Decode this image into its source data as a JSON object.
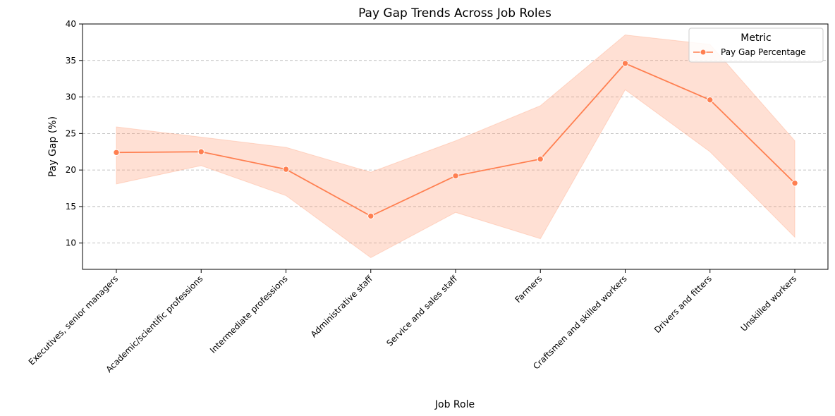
{
  "chart_data": {
    "type": "line",
    "title": "Pay Gap Trends Across Job Roles",
    "xlabel": "Job Role",
    "ylabel": "Pay Gap (%)",
    "ylim": [
      6.4,
      40
    ],
    "yticks": [
      10,
      15,
      20,
      25,
      30,
      35,
      40
    ],
    "grid": "horizontal dashed",
    "categories": [
      "Executives, senior managers",
      "Academic/scientific professions",
      "Intermediate professions",
      "Administrative staff",
      "Service and sales staff",
      "Farmers",
      "Craftsmen and skilled workers",
      "Drivers and fitters",
      "Unskilled workers"
    ],
    "series": [
      {
        "name": "Pay Gap Percentage",
        "color": "#ff7f50",
        "band_color": "#ffa07a",
        "values": [
          22.4,
          22.5,
          20.1,
          13.7,
          19.2,
          21.5,
          34.6,
          29.6,
          18.2
        ],
        "lower": [
          18.1,
          20.6,
          16.5,
          8.0,
          14.2,
          10.6,
          31.0,
          22.5,
          10.8
        ],
        "upper": [
          25.9,
          24.5,
          23.1,
          19.7,
          24.0,
          28.8,
          38.5,
          37.2,
          24.0
        ]
      }
    ],
    "legend": {
      "title": "Metric",
      "location": "top-right"
    }
  }
}
